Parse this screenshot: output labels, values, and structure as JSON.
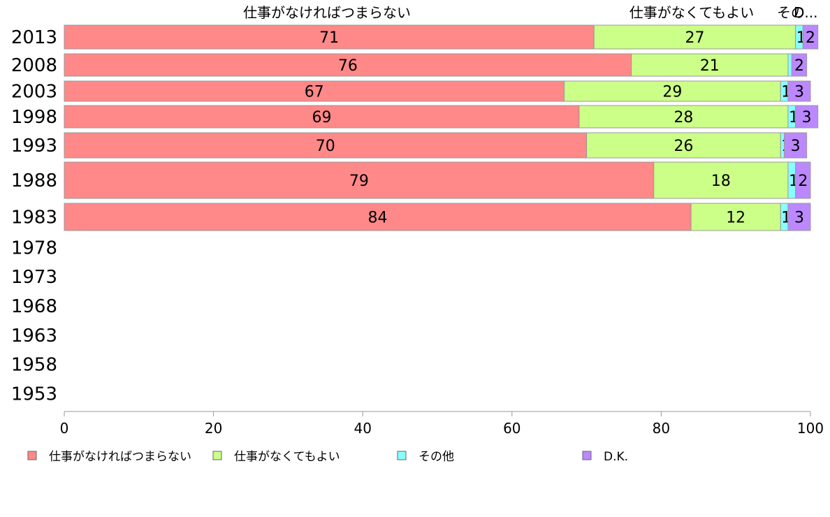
{
  "chart_data": {
    "type": "bar",
    "orientation": "horizontal",
    "stacked": true,
    "categories": [
      "2013",
      "2008",
      "2003",
      "1998",
      "1993",
      "1988",
      "1983",
      "1978",
      "1973",
      "1968",
      "1963",
      "1958",
      "1953"
    ],
    "series": [
      {
        "name": "仕事がなければつまらない",
        "color": "#ff8888",
        "values": [
          71,
          76,
          67,
          69,
          70,
          79,
          84,
          null,
          null,
          null,
          null,
          null,
          null
        ]
      },
      {
        "name": "仕事がなくてもよい",
        "color": "#ccff88",
        "values": [
          27,
          21,
          29,
          28,
          26,
          18,
          12,
          null,
          null,
          null,
          null,
          null,
          null
        ]
      },
      {
        "name": "その他",
        "color": "#88ffff",
        "values": [
          1,
          0.5,
          1,
          1,
          0.5,
          1,
          1,
          null,
          null,
          null,
          null,
          null,
          null
        ],
        "labels": [
          "1",
          "",
          "1",
          "1",
          "1",
          "1",
          "1",
          "",
          "",
          "",
          "",
          "",
          ""
        ]
      },
      {
        "name": "D.K.",
        "color": "#bb88ff",
        "values": [
          2,
          2,
          3,
          3,
          3,
          2,
          3,
          null,
          null,
          null,
          null,
          null,
          null
        ]
      }
    ],
    "top_labels": [
      "仕事がなければつまらない",
      "仕事がなくてもよい",
      "その",
      "D..."
    ],
    "xlim": [
      0,
      100
    ],
    "xticks": [
      0,
      20,
      40,
      60,
      80,
      100
    ],
    "legend_position": "bottom"
  }
}
